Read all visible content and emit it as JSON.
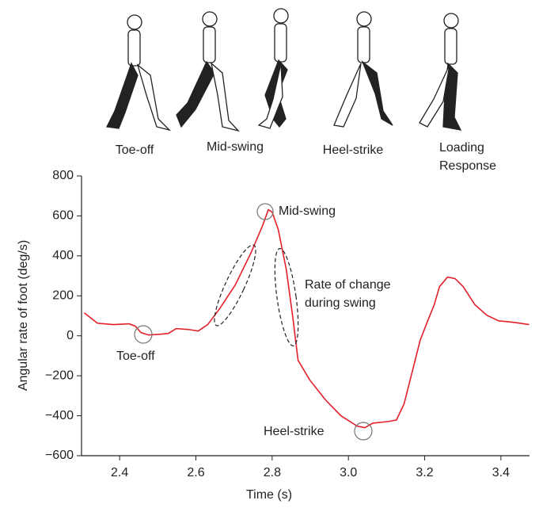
{
  "chart_data": {
    "type": "line",
    "phase_labels": [
      [
        "Toe-off"
      ],
      [
        "Mid-swing"
      ],
      [
        "Heel-strike"
      ],
      [
        "Loading",
        "Response"
      ]
    ],
    "xlabel": "Time (s)",
    "ylabel": "Angular rate of foot (deg/s)",
    "xlim": [
      2.3,
      3.475
    ],
    "xticks": [
      2.4,
      2.6,
      2.8,
      3.0,
      3.2,
      3.4
    ],
    "ylim": [
      -600,
      800
    ],
    "yticks": [
      {
        "value": -600,
        "label": "−600"
      },
      {
        "value": -400,
        "label": "−400"
      },
      {
        "value": -200,
        "label": "−200"
      },
      0,
      200,
      400,
      600,
      800
    ],
    "annotations": [
      [
        "Mid-swing"
      ],
      [
        "Toe-off"
      ],
      [
        "Heel-strike"
      ],
      [
        "Rate of change",
        "during swing"
      ]
    ],
    "x": [
      2.307,
      2.342,
      2.384,
      2.425,
      2.441,
      2.456,
      2.476,
      2.507,
      2.528,
      2.548,
      2.579,
      2.606,
      2.631,
      2.662,
      2.703,
      2.744,
      2.775,
      2.79,
      2.8,
      2.816,
      2.837,
      2.854,
      2.868,
      2.899,
      2.94,
      2.981,
      3.023,
      3.043,
      3.064,
      3.105,
      3.126,
      3.146,
      3.167,
      3.188,
      3.208,
      3.225,
      3.239,
      3.26,
      3.28,
      3.301,
      3.332,
      3.363,
      3.394,
      3.435,
      3.474
    ],
    "series": [
      {
        "color": "#e3202a",
        "values": [
          115,
          63,
          56,
          60,
          48,
          16,
          4,
          8,
          12,
          36,
          32,
          24,
          56,
          135,
          254,
          413,
          552,
          631,
          619,
          532,
          333,
          95,
          -123,
          -222,
          -321,
          -401,
          -452,
          -460,
          -437,
          -429,
          -421,
          -341,
          -183,
          -24,
          75,
          155,
          246,
          294,
          286,
          246,
          155,
          103,
          75,
          67,
          56
        ]
      }
    ]
  }
}
